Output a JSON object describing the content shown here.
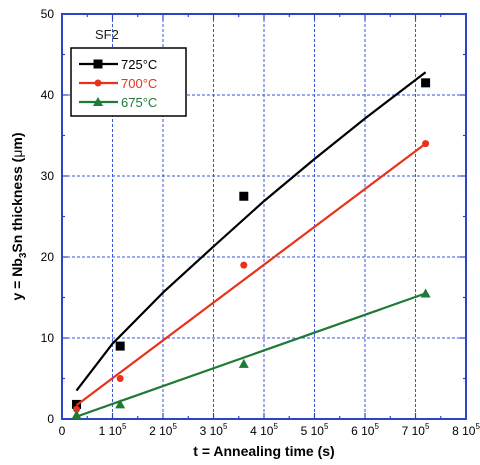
{
  "chart_data": {
    "type": "scatter",
    "annotation": "SF2",
    "xlabel": "t = Annealing time (s)",
    "ylabel_parts": [
      "y = Nb",
      "3",
      "Sn thickness (",
      "μ",
      "m)"
    ],
    "xlim": [
      0,
      800000
    ],
    "ylim": [
      0,
      50
    ],
    "grid": true,
    "legend_position": "top-left",
    "x_ticks": [
      {
        "value": 0,
        "mant": "0",
        "exp": ""
      },
      {
        "value": 100000,
        "mant": "1 10",
        "exp": "5"
      },
      {
        "value": 200000,
        "mant": "2 10",
        "exp": "5"
      },
      {
        "value": 300000,
        "mant": "3 10",
        "exp": "5"
      },
      {
        "value": 400000,
        "mant": "4 10",
        "exp": "5"
      },
      {
        "value": 500000,
        "mant": "5 10",
        "exp": "5"
      },
      {
        "value": 600000,
        "mant": "6 10",
        "exp": "5"
      },
      {
        "value": 700000,
        "mant": "7 10",
        "exp": "5"
      },
      {
        "value": 800000,
        "mant": "8 10",
        "exp": "5"
      }
    ],
    "y_ticks": [
      "0",
      "10",
      "20",
      "30",
      "40",
      "50"
    ],
    "series": [
      {
        "name": "725°C",
        "color": "#000000",
        "marker": "square",
        "x": [
          28800,
          115200,
          360000,
          720000
        ],
        "y": [
          1.8,
          9.0,
          27.5,
          41.5
        ],
        "fit_x": [
          28800,
          100000,
          200000,
          300000,
          400000,
          500000,
          600000,
          720000
        ],
        "fit_y": [
          3.5,
          9.3,
          15.6,
          21.3,
          26.9,
          32.1,
          37.1,
          42.8
        ]
      },
      {
        "name": "700°C",
        "color": "#e8321e",
        "marker": "circle",
        "x": [
          28800,
          115200,
          360000,
          720000
        ],
        "y": [
          1.2,
          5.0,
          19.0,
          34.0
        ],
        "fit_x": [
          28800,
          720000
        ],
        "fit_y": [
          1.7,
          34.0
        ]
      },
      {
        "name": "675°C",
        "color": "#1e7a34",
        "marker": "triangle",
        "x": [
          28800,
          115200,
          360000,
          720000
        ],
        "y": [
          0.5,
          1.8,
          6.8,
          15.5
        ],
        "fit_x": [
          28800,
          720000
        ],
        "fit_y": [
          0.3,
          15.5
        ]
      }
    ]
  }
}
